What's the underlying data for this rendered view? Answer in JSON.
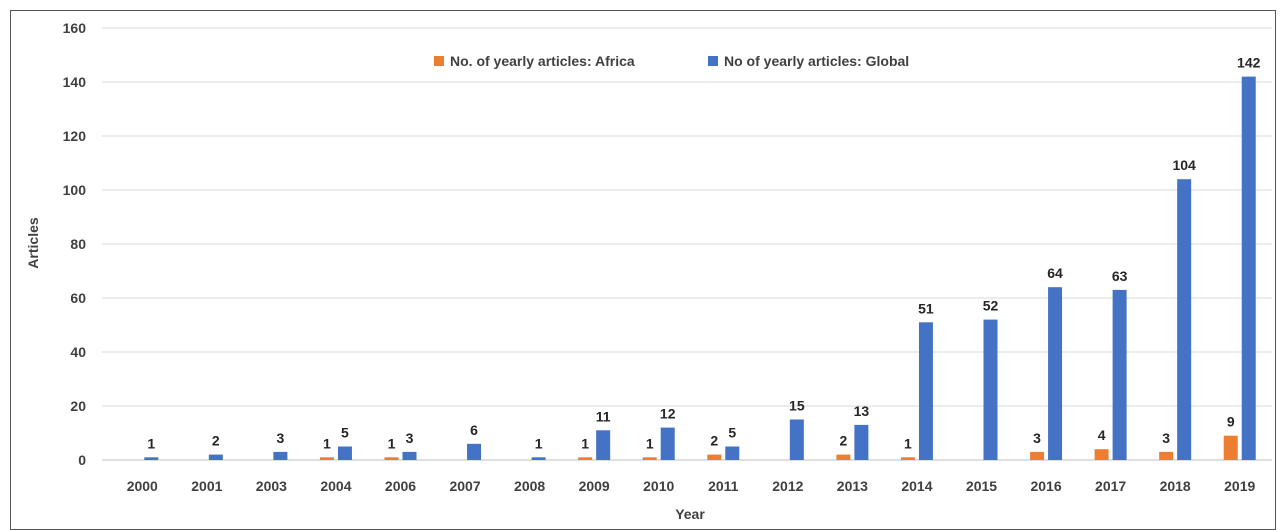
{
  "chart_data": {
    "type": "bar",
    "title": "",
    "xlabel": "Year",
    "ylabel": "Articles",
    "ylim": [
      0,
      160
    ],
    "yticks": [
      0,
      20,
      40,
      60,
      80,
      100,
      120,
      140,
      160
    ],
    "grid": true,
    "legend_position": "top-center",
    "categories": [
      "2000",
      "2001",
      "2003",
      "2004",
      "2006",
      "2007",
      "2008",
      "2009",
      "2010",
      "2011",
      "2012",
      "2013",
      "2014",
      "2015",
      "2016",
      "2017",
      "2018",
      "2019"
    ],
    "series": [
      {
        "name": "No. of yearly articles: Africa",
        "color": "#ED7D31",
        "values": [
          null,
          null,
          null,
          1,
          1,
          null,
          null,
          1,
          1,
          2,
          null,
          2,
          1,
          null,
          3,
          4,
          3,
          9
        ]
      },
      {
        "name": "No of yearly articles: Global",
        "color": "#4472C4",
        "values": [
          1,
          2,
          3,
          5,
          3,
          6,
          1,
          11,
          12,
          5,
          15,
          13,
          51,
          52,
          64,
          63,
          104,
          142
        ]
      }
    ]
  }
}
